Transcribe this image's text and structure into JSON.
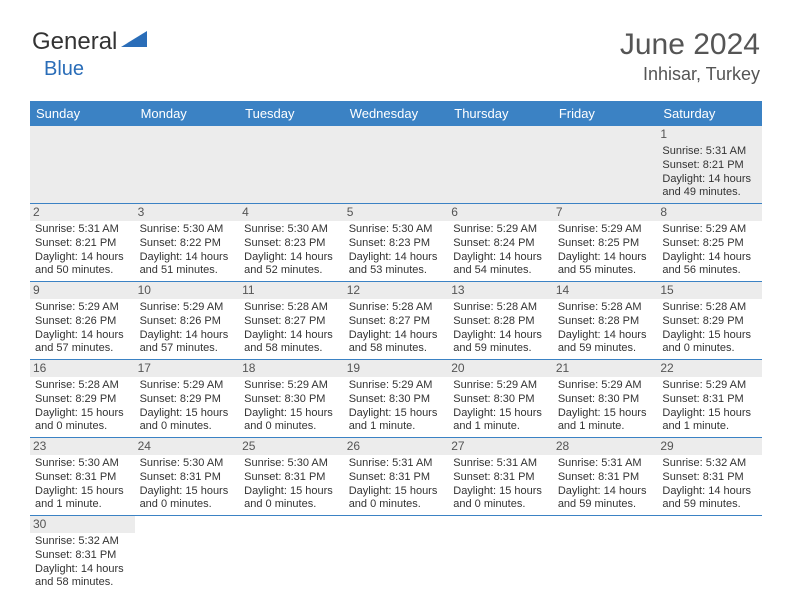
{
  "logo": {
    "text1": "General",
    "text2": "Blue",
    "color_dark": "#333333",
    "color_blue": "#2a6db8"
  },
  "title": "June 2024",
  "location": "Inhisar, Turkey",
  "header_bg": "#3b82c4",
  "day_stripe_bg": "#ececec",
  "border_color": "#3b82c4",
  "weekdays": [
    "Sunday",
    "Monday",
    "Tuesday",
    "Wednesday",
    "Thursday",
    "Friday",
    "Saturday"
  ],
  "weeks": [
    [
      null,
      null,
      null,
      null,
      null,
      null,
      {
        "n": "1",
        "sr": "5:31 AM",
        "ss": "8:21 PM",
        "dl": "14 hours and 49 minutes."
      }
    ],
    [
      {
        "n": "2",
        "sr": "5:31 AM",
        "ss": "8:21 PM",
        "dl": "14 hours and 50 minutes."
      },
      {
        "n": "3",
        "sr": "5:30 AM",
        "ss": "8:22 PM",
        "dl": "14 hours and 51 minutes."
      },
      {
        "n": "4",
        "sr": "5:30 AM",
        "ss": "8:23 PM",
        "dl": "14 hours and 52 minutes."
      },
      {
        "n": "5",
        "sr": "5:30 AM",
        "ss": "8:23 PM",
        "dl": "14 hours and 53 minutes."
      },
      {
        "n": "6",
        "sr": "5:29 AM",
        "ss": "8:24 PM",
        "dl": "14 hours and 54 minutes."
      },
      {
        "n": "7",
        "sr": "5:29 AM",
        "ss": "8:25 PM",
        "dl": "14 hours and 55 minutes."
      },
      {
        "n": "8",
        "sr": "5:29 AM",
        "ss": "8:25 PM",
        "dl": "14 hours and 56 minutes."
      }
    ],
    [
      {
        "n": "9",
        "sr": "5:29 AM",
        "ss": "8:26 PM",
        "dl": "14 hours and 57 minutes."
      },
      {
        "n": "10",
        "sr": "5:29 AM",
        "ss": "8:26 PM",
        "dl": "14 hours and 57 minutes."
      },
      {
        "n": "11",
        "sr": "5:28 AM",
        "ss": "8:27 PM",
        "dl": "14 hours and 58 minutes."
      },
      {
        "n": "12",
        "sr": "5:28 AM",
        "ss": "8:27 PM",
        "dl": "14 hours and 58 minutes."
      },
      {
        "n": "13",
        "sr": "5:28 AM",
        "ss": "8:28 PM",
        "dl": "14 hours and 59 minutes."
      },
      {
        "n": "14",
        "sr": "5:28 AM",
        "ss": "8:28 PM",
        "dl": "14 hours and 59 minutes."
      },
      {
        "n": "15",
        "sr": "5:28 AM",
        "ss": "8:29 PM",
        "dl": "15 hours and 0 minutes."
      }
    ],
    [
      {
        "n": "16",
        "sr": "5:28 AM",
        "ss": "8:29 PM",
        "dl": "15 hours and 0 minutes."
      },
      {
        "n": "17",
        "sr": "5:29 AM",
        "ss": "8:29 PM",
        "dl": "15 hours and 0 minutes."
      },
      {
        "n": "18",
        "sr": "5:29 AM",
        "ss": "8:30 PM",
        "dl": "15 hours and 0 minutes."
      },
      {
        "n": "19",
        "sr": "5:29 AM",
        "ss": "8:30 PM",
        "dl": "15 hours and 1 minute."
      },
      {
        "n": "20",
        "sr": "5:29 AM",
        "ss": "8:30 PM",
        "dl": "15 hours and 1 minute."
      },
      {
        "n": "21",
        "sr": "5:29 AM",
        "ss": "8:30 PM",
        "dl": "15 hours and 1 minute."
      },
      {
        "n": "22",
        "sr": "5:29 AM",
        "ss": "8:31 PM",
        "dl": "15 hours and 1 minute."
      }
    ],
    [
      {
        "n": "23",
        "sr": "5:30 AM",
        "ss": "8:31 PM",
        "dl": "15 hours and 1 minute."
      },
      {
        "n": "24",
        "sr": "5:30 AM",
        "ss": "8:31 PM",
        "dl": "15 hours and 0 minutes."
      },
      {
        "n": "25",
        "sr": "5:30 AM",
        "ss": "8:31 PM",
        "dl": "15 hours and 0 minutes."
      },
      {
        "n": "26",
        "sr": "5:31 AM",
        "ss": "8:31 PM",
        "dl": "15 hours and 0 minutes."
      },
      {
        "n": "27",
        "sr": "5:31 AM",
        "ss": "8:31 PM",
        "dl": "15 hours and 0 minutes."
      },
      {
        "n": "28",
        "sr": "5:31 AM",
        "ss": "8:31 PM",
        "dl": "14 hours and 59 minutes."
      },
      {
        "n": "29",
        "sr": "5:32 AM",
        "ss": "8:31 PM",
        "dl": "14 hours and 59 minutes."
      }
    ],
    [
      {
        "n": "30",
        "sr": "5:32 AM",
        "ss": "8:31 PM",
        "dl": "14 hours and 58 minutes."
      },
      null,
      null,
      null,
      null,
      null,
      null
    ]
  ],
  "labels": {
    "sunrise": "Sunrise:",
    "sunset": "Sunset:",
    "daylight": "Daylight:"
  }
}
